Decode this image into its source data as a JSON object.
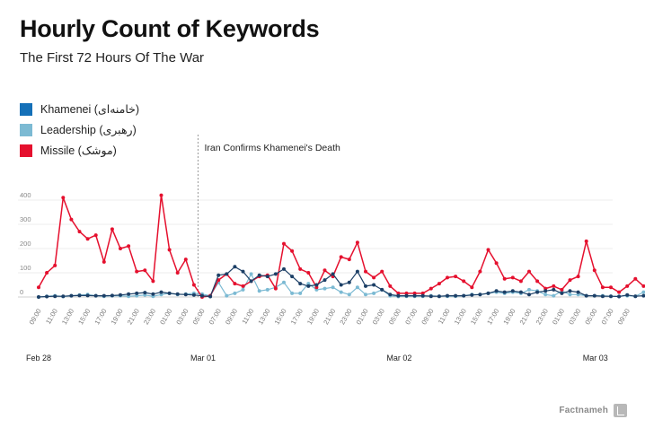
{
  "title": "Hourly Count of Keywords",
  "subtitle": "The First 72 Hours Of The War",
  "brand": "Factnameh",
  "chart_data": {
    "type": "line",
    "title": "Hourly Count of Keywords",
    "subtitle": "The First 72 Hours Of The War",
    "xlabel": "",
    "ylabel": "",
    "ylim": [
      0,
      400
    ],
    "yticks": [
      0,
      100,
      200,
      300,
      400
    ],
    "grid": true,
    "legend_position": "top-left",
    "x_tick_labels": [
      "09:00",
      "11:00",
      "13:00",
      "15:00",
      "17:00",
      "19:00",
      "21:00",
      "23:00",
      "01:00",
      "03:00",
      "05:00",
      "07:00",
      "09:00",
      "11:00",
      "13:00",
      "15:00",
      "17:00",
      "19:00",
      "21:00",
      "23:00",
      "01:00",
      "03:00",
      "05:00",
      "07:00",
      "09:00",
      "11:00",
      "13:00",
      "15:00",
      "17:00",
      "19:00",
      "21:00",
      "23:00",
      "01:00",
      "03:00",
      "05:00",
      "07:00",
      "09:00"
    ],
    "date_labels": [
      {
        "label": "Feb 28",
        "hour_index": 0
      },
      {
        "label": "Mar 01",
        "hour_index": 20
      },
      {
        "label": "Mar 02",
        "hour_index": 44
      },
      {
        "label": "Mar 03",
        "hour_index": 68
      }
    ],
    "annotation": {
      "label": "Iran Confirms Khamenei's Death",
      "hour_index": 19.5
    },
    "series": [
      {
        "name": "Khamenei (خامنه‌ای)",
        "color": "#1c3f66",
        "values": [
          0,
          2,
          3,
          3,
          5,
          6,
          6,
          5,
          5,
          6,
          8,
          12,
          15,
          18,
          12,
          20,
          15,
          12,
          10,
          8,
          5,
          2,
          90,
          95,
          125,
          105,
          65,
          90,
          85,
          95,
          115,
          85,
          55,
          45,
          50,
          70,
          95,
          50,
          60,
          105,
          45,
          50,
          30,
          10,
          5,
          5,
          5,
          5,
          3,
          3,
          5,
          5,
          5,
          8,
          10,
          15,
          25,
          20,
          25,
          20,
          10,
          20,
          25,
          30,
          15,
          25,
          20,
          5,
          5,
          3,
          3,
          2,
          8,
          3,
          5
        ]
      },
      {
        "name": "Leadership (رهبری)",
        "color": "#7cbad3",
        "values": [
          0,
          3,
          5,
          2,
          5,
          8,
          10,
          5,
          3,
          5,
          5,
          3,
          5,
          8,
          3,
          10,
          15,
          10,
          12,
          15,
          12,
          5,
          60,
          5,
          15,
          30,
          95,
          25,
          30,
          40,
          60,
          15,
          15,
          55,
          30,
          35,
          40,
          20,
          10,
          40,
          10,
          15,
          30,
          5,
          2,
          3,
          3,
          3,
          5,
          3,
          3,
          3,
          5,
          10,
          10,
          15,
          20,
          15,
          20,
          15,
          30,
          25,
          10,
          5,
          25,
          10,
          10,
          5,
          5,
          5,
          3,
          3,
          5,
          3,
          20
        ]
      },
      {
        "name": "Missile (موشک)",
        "color": "#e5102e",
        "values": [
          40,
          100,
          130,
          410,
          320,
          270,
          240,
          255,
          145,
          280,
          200,
          210,
          105,
          110,
          65,
          420,
          195,
          100,
          155,
          50,
          0,
          5,
          70,
          95,
          55,
          45,
          65,
          85,
          90,
          35,
          220,
          190,
          115,
          100,
          40,
          110,
          85,
          165,
          155,
          225,
          105,
          80,
          105,
          45,
          15,
          15,
          15,
          15,
          35,
          55,
          80,
          85,
          65,
          40,
          105,
          195,
          140,
          75,
          80,
          65,
          105,
          65,
          35,
          45,
          30,
          70,
          85,
          230,
          110,
          40,
          40,
          20,
          45,
          75,
          45
        ]
      }
    ]
  }
}
